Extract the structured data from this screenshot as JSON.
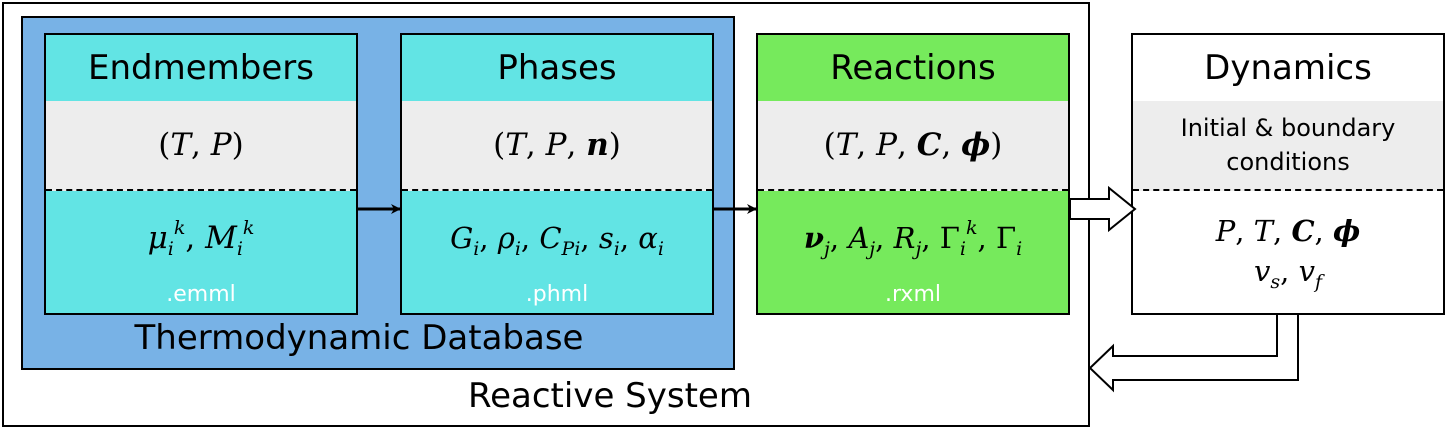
{
  "reactive_system": {
    "label": "Reactive System"
  },
  "thermodynamic_database": {
    "label": "Thermodynamic Database"
  },
  "endmembers": {
    "title": "Endmembers",
    "inputs": "(T, P)",
    "outputs": "μ_i^k, M_i^k",
    "file_ext": ".emml"
  },
  "phases": {
    "title": "Phases",
    "inputs": "(T, P, n)",
    "outputs": "G_i, ρ_i, C_Pi, s_i, α_i",
    "file_ext": ".phml"
  },
  "reactions": {
    "title": "Reactions",
    "inputs": "(T, P, C, φ)",
    "outputs": "ν_j, A_j, R_j, Γ_i^k, Γ_i",
    "file_ext": ".rxml"
  },
  "dynamics": {
    "title": "Dynamics",
    "conditions_line1": "Initial & boundary",
    "conditions_line2": "conditions",
    "outputs_line1": "P, T, C, φ",
    "outputs_line2": "v_s, v_f"
  },
  "colors": {
    "database_bg": "#78b2e6",
    "cyan_box": "#62e4e4",
    "green_box": "#76ea5c",
    "band_gray": "#ededed"
  }
}
